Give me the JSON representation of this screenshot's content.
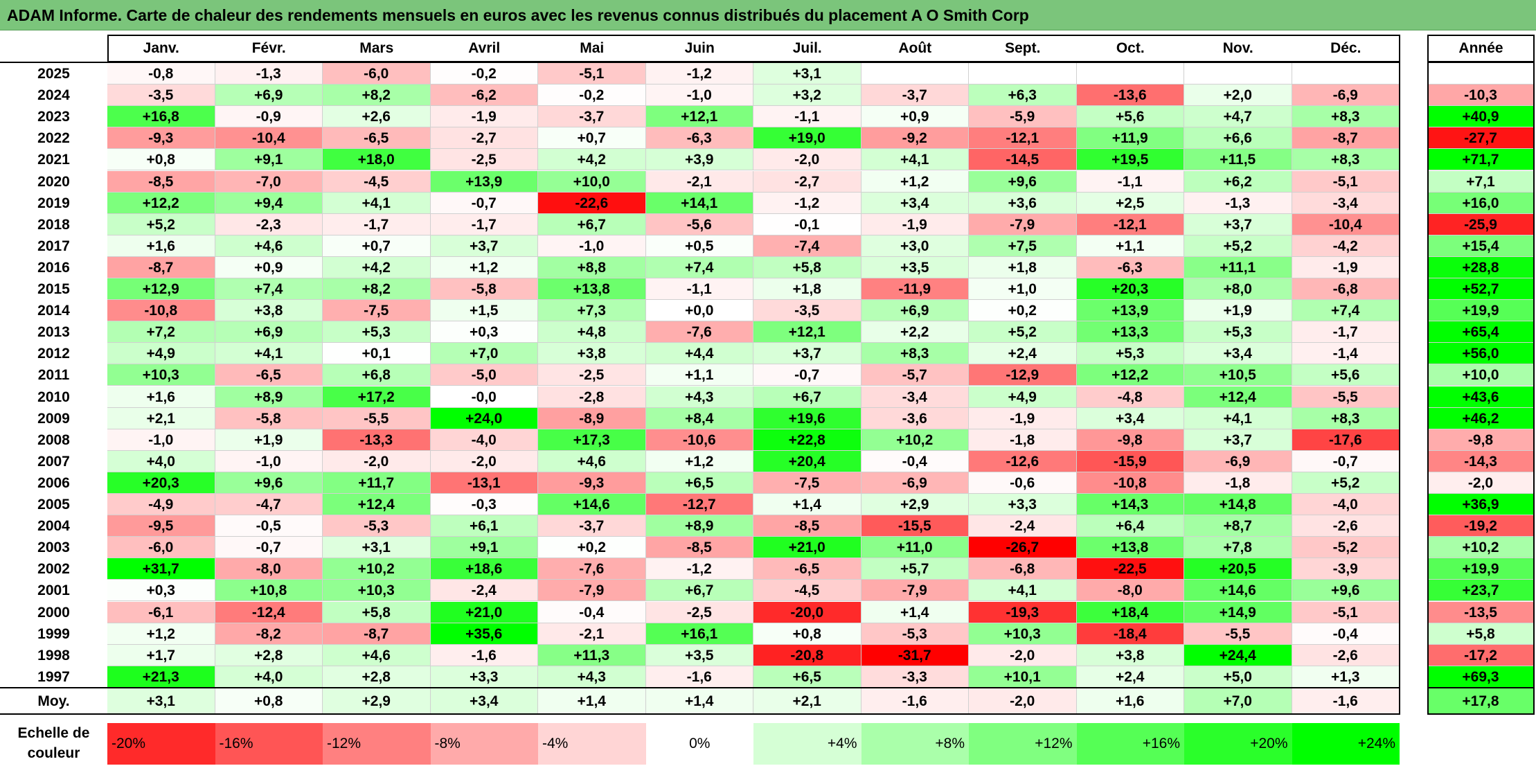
{
  "title": "ADAM Informe. Carte de chaleur des rendements mensuels en euros avec les revenus connus distribués du placement A O Smith Corp",
  "chart_data": {
    "type": "heatmap",
    "title": "ADAM Informe. Carte de chaleur des rendements mensuels en euros avec les revenus connus distribués du placement A O Smith Corp",
    "columns": [
      "Janv.",
      "Févr.",
      "Mars",
      "Avril",
      "Mai",
      "Juin",
      "Juil.",
      "Août",
      "Sept.",
      "Oct.",
      "Nov.",
      "Déc."
    ],
    "annual_header": "Année",
    "rows": [
      {
        "year": "2025",
        "months": [
          "-0,8",
          "-1,3",
          "-6,0",
          "-0,2",
          "-5,1",
          "-1,2",
          "+3,1",
          "",
          "",
          "",
          "",
          ""
        ],
        "annual": ""
      },
      {
        "year": "2024",
        "months": [
          "-3,5",
          "+6,9",
          "+8,2",
          "-6,2",
          "-0,2",
          "-1,0",
          "+3,2",
          "-3,7",
          "+6,3",
          "-13,6",
          "+2,0",
          "-6,9"
        ],
        "annual": "-10,3"
      },
      {
        "year": "2023",
        "months": [
          "+16,8",
          "-0,9",
          "+2,6",
          "-1,9",
          "-3,7",
          "+12,1",
          "-1,1",
          "+0,9",
          "-5,9",
          "+5,6",
          "+4,7",
          "+8,3"
        ],
        "annual": "+40,9"
      },
      {
        "year": "2022",
        "months": [
          "-9,3",
          "-10,4",
          "-6,5",
          "-2,7",
          "+0,7",
          "-6,3",
          "+19,0",
          "-9,2",
          "-12,1",
          "+11,9",
          "+6,6",
          "-8,7"
        ],
        "annual": "-27,7"
      },
      {
        "year": "2021",
        "months": [
          "+0,8",
          "+9,1",
          "+18,0",
          "-2,5",
          "+4,2",
          "+3,9",
          "-2,0",
          "+4,1",
          "-14,5",
          "+19,5",
          "+11,5",
          "+8,3"
        ],
        "annual": "+71,7"
      },
      {
        "year": "2020",
        "months": [
          "-8,5",
          "-7,0",
          "-4,5",
          "+13,9",
          "+10,0",
          "-2,1",
          "-2,7",
          "+1,2",
          "+9,6",
          "-1,1",
          "+6,2",
          "-5,1"
        ],
        "annual": "+7,1"
      },
      {
        "year": "2019",
        "months": [
          "+12,2",
          "+9,4",
          "+4,1",
          "-0,7",
          "-22,6",
          "+14,1",
          "-1,2",
          "+3,4",
          "+3,6",
          "+2,5",
          "-1,3",
          "-3,4"
        ],
        "annual": "+16,0"
      },
      {
        "year": "2018",
        "months": [
          "+5,2",
          "-2,3",
          "-1,7",
          "-1,7",
          "+6,7",
          "-5,6",
          "-0,1",
          "-1,9",
          "-7,9",
          "-12,1",
          "+3,7",
          "-10,4"
        ],
        "annual": "-25,9"
      },
      {
        "year": "2017",
        "months": [
          "+1,6",
          "+4,6",
          "+0,7",
          "+3,7",
          "-1,0",
          "+0,5",
          "-7,4",
          "+3,0",
          "+7,5",
          "+1,1",
          "+5,2",
          "-4,2"
        ],
        "annual": "+15,4"
      },
      {
        "year": "2016",
        "months": [
          "-8,7",
          "+0,9",
          "+4,2",
          "+1,2",
          "+8,8",
          "+7,4",
          "+5,8",
          "+3,5",
          "+1,8",
          "-6,3",
          "+11,1",
          "-1,9"
        ],
        "annual": "+28,8"
      },
      {
        "year": "2015",
        "months": [
          "+12,9",
          "+7,4",
          "+8,2",
          "-5,8",
          "+13,8",
          "-1,1",
          "+1,8",
          "-11,9",
          "+1,0",
          "+20,3",
          "+8,0",
          "-6,8"
        ],
        "annual": "+52,7"
      },
      {
        "year": "2014",
        "months": [
          "-10,8",
          "+3,8",
          "-7,5",
          "+1,5",
          "+7,3",
          "+0,0",
          "-3,5",
          "+6,9",
          "+0,2",
          "+13,9",
          "+1,9",
          "+7,4"
        ],
        "annual": "+19,9"
      },
      {
        "year": "2013",
        "months": [
          "+7,2",
          "+6,9",
          "+5,3",
          "+0,3",
          "+4,8",
          "-7,6",
          "+12,1",
          "+2,2",
          "+5,2",
          "+13,3",
          "+5,3",
          "-1,7"
        ],
        "annual": "+65,4"
      },
      {
        "year": "2012",
        "months": [
          "+4,9",
          "+4,1",
          "+0,1",
          "+7,0",
          "+3,8",
          "+4,4",
          "+3,7",
          "+8,3",
          "+2,4",
          "+5,3",
          "+3,4",
          "-1,4"
        ],
        "annual": "+56,0"
      },
      {
        "year": "2011",
        "months": [
          "+10,3",
          "-6,5",
          "+6,8",
          "-5,0",
          "-2,5",
          "+1,1",
          "-0,7",
          "-5,7",
          "-12,9",
          "+12,2",
          "+10,5",
          "+5,6"
        ],
        "annual": "+10,0"
      },
      {
        "year": "2010",
        "months": [
          "+1,6",
          "+8,9",
          "+17,2",
          "-0,0",
          "-2,8",
          "+4,3",
          "+6,7",
          "-3,4",
          "+4,9",
          "-4,8",
          "+12,4",
          "-5,5"
        ],
        "annual": "+43,6"
      },
      {
        "year": "2009",
        "months": [
          "+2,1",
          "-5,8",
          "-5,5",
          "+24,0",
          "-8,9",
          "+8,4",
          "+19,6",
          "-3,6",
          "-1,9",
          "+3,4",
          "+4,1",
          "+8,3"
        ],
        "annual": "+46,2"
      },
      {
        "year": "2008",
        "months": [
          "-1,0",
          "+1,9",
          "-13,3",
          "-4,0",
          "+17,3",
          "-10,6",
          "+22,8",
          "+10,2",
          "-1,8",
          "-9,8",
          "+3,7",
          "-17,6"
        ],
        "annual": "-9,8"
      },
      {
        "year": "2007",
        "months": [
          "+4,0",
          "-1,0",
          "-2,0",
          "-2,0",
          "+4,6",
          "+1,2",
          "+20,4",
          "-0,4",
          "-12,6",
          "-15,9",
          "-6,9",
          "-0,7"
        ],
        "annual": "-14,3"
      },
      {
        "year": "2006",
        "months": [
          "+20,3",
          "+9,6",
          "+11,7",
          "-13,1",
          "-9,3",
          "+6,5",
          "-7,5",
          "-6,9",
          "-0,6",
          "-10,8",
          "-1,8",
          "+5,2"
        ],
        "annual": "-2,0"
      },
      {
        "year": "2005",
        "months": [
          "-4,9",
          "-4,7",
          "+12,4",
          "-0,3",
          "+14,6",
          "-12,7",
          "+1,4",
          "+2,9",
          "+3,3",
          "+14,3",
          "+14,8",
          "-4,0"
        ],
        "annual": "+36,9"
      },
      {
        "year": "2004",
        "months": [
          "-9,5",
          "-0,5",
          "-5,3",
          "+6,1",
          "-3,7",
          "+8,9",
          "-8,5",
          "-15,5",
          "-2,4",
          "+6,4",
          "+8,7",
          "-2,6"
        ],
        "annual": "-19,2"
      },
      {
        "year": "2003",
        "months": [
          "-6,0",
          "-0,7",
          "+3,1",
          "+9,1",
          "+0,2",
          "-8,5",
          "+21,0",
          "+11,0",
          "-26,7",
          "+13,8",
          "+7,8",
          "-5,2"
        ],
        "annual": "+10,2"
      },
      {
        "year": "2002",
        "months": [
          "+31,7",
          "-8,0",
          "+10,2",
          "+18,6",
          "-7,6",
          "-1,2",
          "-6,5",
          "+5,7",
          "-6,8",
          "-22,5",
          "+20,5",
          "-3,9"
        ],
        "annual": "+19,9"
      },
      {
        "year": "2001",
        "months": [
          "+0,3",
          "+10,8",
          "+10,3",
          "-2,4",
          "-7,9",
          "+6,7",
          "-4,5",
          "-7,9",
          "+4,1",
          "-8,0",
          "+14,6",
          "+9,6"
        ],
        "annual": "+23,7"
      },
      {
        "year": "2000",
        "months": [
          "-6,1",
          "-12,4",
          "+5,8",
          "+21,0",
          "-0,4",
          "-2,5",
          "-20,0",
          "+1,4",
          "-19,3",
          "+18,4",
          "+14,9",
          "-5,1"
        ],
        "annual": "-13,5"
      },
      {
        "year": "1999",
        "months": [
          "+1,2",
          "-8,2",
          "-8,7",
          "+35,6",
          "-2,1",
          "+16,1",
          "+0,8",
          "-5,3",
          "+10,3",
          "-18,4",
          "-5,5",
          "-0,4"
        ],
        "annual": "+5,8"
      },
      {
        "year": "1998",
        "months": [
          "+1,7",
          "+2,8",
          "+4,6",
          "-1,6",
          "+11,3",
          "+3,5",
          "-20,8",
          "-31,7",
          "-2,0",
          "+3,8",
          "+24,4",
          "-2,6"
        ],
        "annual": "-17,2"
      },
      {
        "year": "1997",
        "months": [
          "+21,3",
          "+4,0",
          "+2,8",
          "+3,3",
          "+4,3",
          "-1,6",
          "+6,5",
          "-3,3",
          "+10,1",
          "+2,4",
          "+5,0",
          "+1,3"
        ],
        "annual": "+69,3"
      }
    ],
    "average": {
      "label": "Moy.",
      "months": [
        "+3,1",
        "+0,8",
        "+2,9",
        "+3,4",
        "+1,4",
        "+1,4",
        "+2,1",
        "-1,6",
        "-2,0",
        "+1,6",
        "+7,0",
        "-1,6"
      ],
      "annual": "+17,8"
    },
    "scale": {
      "label_line1": "Echelle de",
      "label_line2": "couleur",
      "items": [
        {
          "text": "-20%",
          "v": -20
        },
        {
          "text": "-16%",
          "v": -16
        },
        {
          "text": "-12%",
          "v": -12
        },
        {
          "text": "-8%",
          "v": -8
        },
        {
          "text": "-4%",
          "v": -4
        },
        {
          "text": "0%",
          "v": 0
        },
        {
          "text": "+4%",
          "v": 4
        },
        {
          "text": "+8%",
          "v": 8
        },
        {
          "text": "+12%",
          "v": 12
        },
        {
          "text": "+16%",
          "v": 16
        },
        {
          "text": "+20%",
          "v": 20
        },
        {
          "text": "+24%",
          "v": 24
        }
      ]
    },
    "colors": {
      "negative_max": "#ff0000",
      "neutral": "#ffffff",
      "positive_max": "#00ff00"
    }
  }
}
